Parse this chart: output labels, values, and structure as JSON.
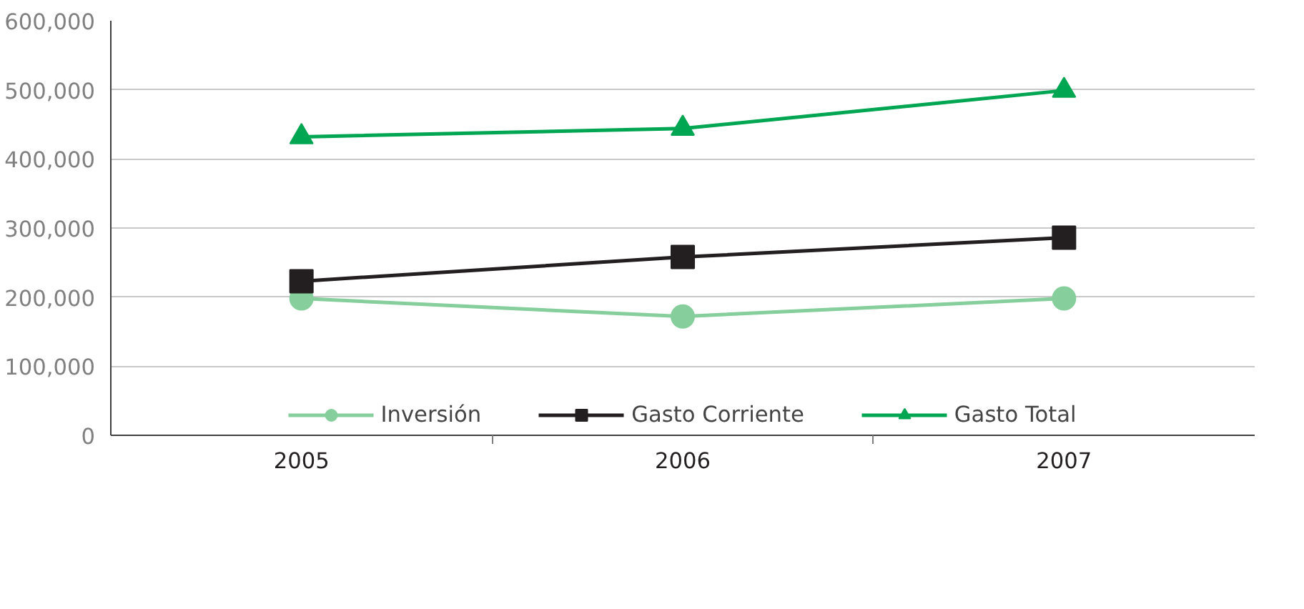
{
  "chart_data": {
    "type": "line",
    "categories": [
      "2005",
      "2006",
      "2007"
    ],
    "series": [
      {
        "name": "Inversión",
        "color": "#86cf9c",
        "marker": "circle",
        "values": [
          198000,
          172000,
          198000
        ]
      },
      {
        "name": "Gasto Corriente",
        "color": "#231f20",
        "marker": "square",
        "values": [
          223000,
          258000,
          286000
        ]
      },
      {
        "name": "Gasto Total",
        "color": "#00a651",
        "marker": "triangle",
        "values": [
          432000,
          444000,
          499000
        ]
      }
    ],
    "ylim": [
      0,
      600000
    ],
    "yticks": [
      {
        "value": 0,
        "label": "0"
      },
      {
        "value": 100000,
        "label": "100,000"
      },
      {
        "value": 200000,
        "label": "200,000"
      },
      {
        "value": 300000,
        "label": "300,000"
      },
      {
        "value": 400000,
        "label": "400,000"
      },
      {
        "value": 500000,
        "label": "500,000"
      },
      {
        "value": 600000,
        "label": "600,000"
      }
    ],
    "grid": "y",
    "legend": "bottom",
    "line_style": "solid"
  }
}
